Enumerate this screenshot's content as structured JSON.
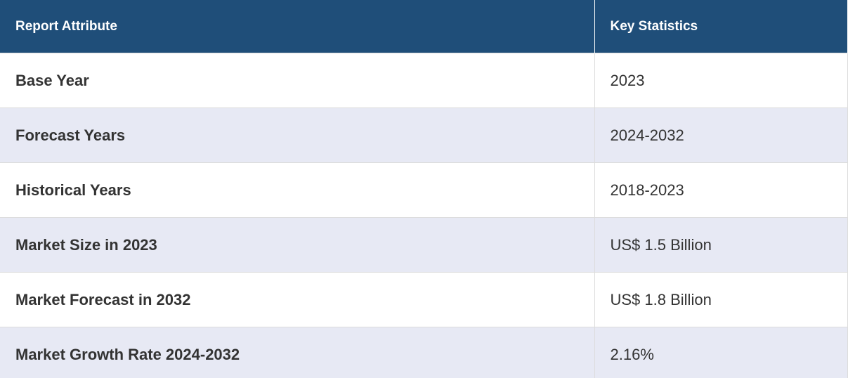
{
  "table": {
    "header": [
      "Report Attribute",
      "Key Statistics"
    ],
    "rows": [
      [
        "Base Year",
        "2023"
      ],
      [
        "Forecast Years",
        "2024-2032"
      ],
      [
        "Historical Years",
        "2018-2023"
      ],
      [
        "Market Size in 2023",
        "US$ 1.5 Billion"
      ],
      [
        "Market Forecast in 2032",
        "US$ 1.8 Billion"
      ],
      [
        "Market Growth Rate 2024-2032",
        "2.16%"
      ]
    ]
  }
}
